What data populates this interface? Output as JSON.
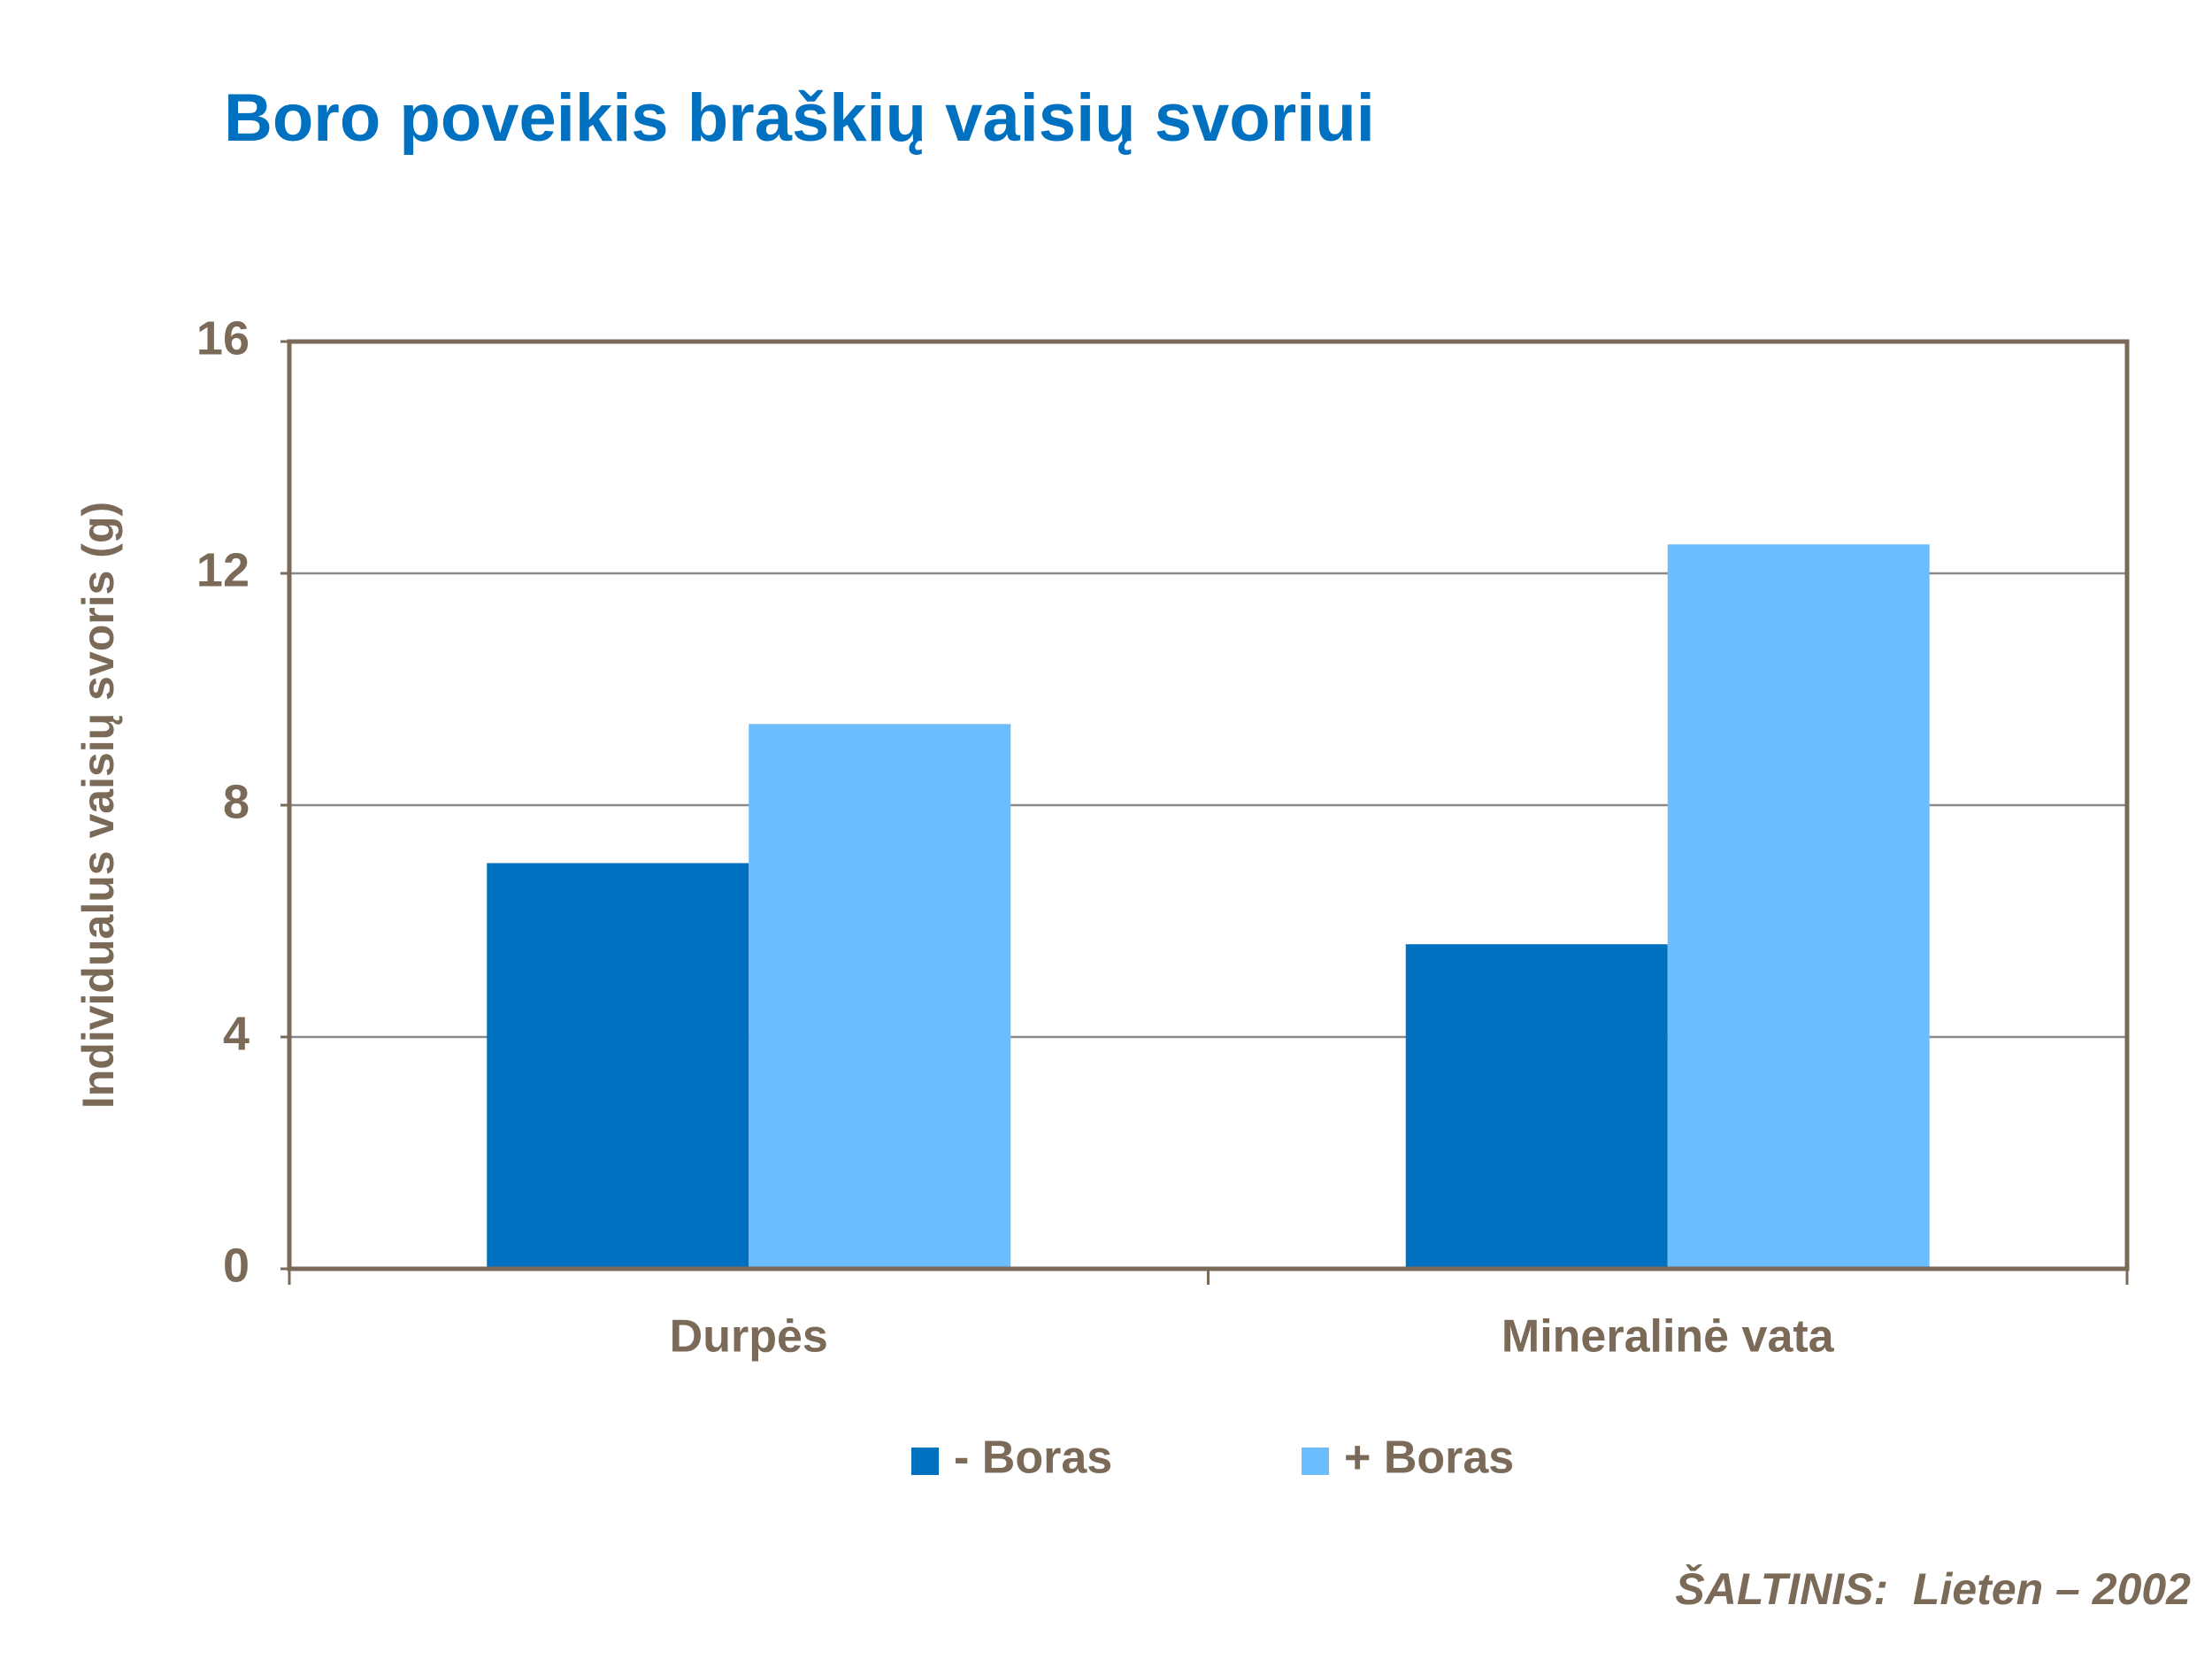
{
  "chart_data": {
    "type": "bar",
    "title": "Boro poveikis braškių vaisių svoriui",
    "y_label": "Individualus vaisių svoris (g)",
    "categories": [
      "Durpės",
      "Mineralinė vata"
    ],
    "series": [
      {
        "name": "- Boras",
        "color": "#0070c0",
        "values": [
          7.0,
          5.6
        ]
      },
      {
        "name": "+ Boras",
        "color": "#6bbdfd",
        "values": [
          9.4,
          12.5
        ]
      }
    ],
    "ylim": [
      0,
      16
    ],
    "yticks": [
      0,
      4,
      8,
      12,
      16
    ],
    "grid": true,
    "source": "ŠALTINIS:  Lieten – 2002"
  }
}
